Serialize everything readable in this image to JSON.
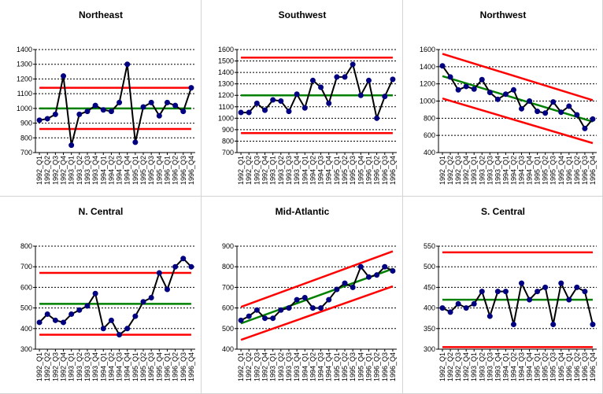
{
  "chart_data": [
    {
      "type": "line",
      "title": "Northeast",
      "categories": [
        "1992_Q1",
        "1992_Q2",
        "1992_Q3",
        "1992_Q4",
        "1993_Q1",
        "1993_Q2",
        "1993_Q3",
        "1993_Q4",
        "1994_Q1",
        "1994_Q2",
        "1994_Q3",
        "1994_Q4",
        "1995_Q1",
        "1995_Q2",
        "1995_Q3",
        "1995_Q4",
        "1996_Q1",
        "1996_Q2",
        "1996_Q3",
        "1996_Q4"
      ],
      "values": [
        920,
        930,
        960,
        1220,
        750,
        960,
        980,
        1020,
        990,
        980,
        1040,
        1300,
        770,
        1010,
        1040,
        950,
        1040,
        1020,
        980,
        1140
      ],
      "ylim": [
        700,
        1400
      ],
      "yticks": [
        700,
        800,
        900,
        1000,
        1100,
        1200,
        1300,
        1400
      ],
      "center_line": {
        "start": 1000,
        "end": 1000
      },
      "upper_limit": {
        "start": 1140,
        "end": 1140
      },
      "lower_limit": {
        "start": 860,
        "end": 860
      },
      "grid": "horizontal-dashed"
    },
    {
      "type": "line",
      "title": "Southwest",
      "categories": [
        "1992_Q1",
        "1992_Q2",
        "1992_Q3",
        "1992_Q4",
        "1993_Q1",
        "1993_Q2",
        "1993_Q3",
        "1993_Q4",
        "1994_Q1",
        "1994_Q2",
        "1994_Q3",
        "1994_Q4",
        "1995_Q1",
        "1995_Q2",
        "1995_Q3",
        "1995_Q4",
        "1996_Q1",
        "1996_Q2",
        "1996_Q3",
        "1996_Q4"
      ],
      "values": [
        1050,
        1050,
        1130,
        1070,
        1160,
        1150,
        1060,
        1210,
        1090,
        1330,
        1270,
        1130,
        1360,
        1360,
        1470,
        1200,
        1330,
        1000,
        1190,
        1340
      ],
      "ylim": [
        700,
        1600
      ],
      "yticks": [
        700,
        800,
        900,
        1000,
        1100,
        1200,
        1300,
        1400,
        1500,
        1600
      ],
      "center_line": {
        "start": 1200,
        "end": 1200
      },
      "upper_limit": {
        "start": 1530,
        "end": 1530
      },
      "lower_limit": {
        "start": 870,
        "end": 870
      },
      "grid": "horizontal-dashed"
    },
    {
      "type": "line",
      "title": "Northwest",
      "categories": [
        "1992_Q1",
        "1992_Q2",
        "1992_Q3",
        "1992_Q4",
        "1993_Q1",
        "1993_Q2",
        "1993_Q3",
        "1993_Q4",
        "1994_Q1",
        "1994_Q2",
        "1994_Q3",
        "1994_Q4",
        "1995_Q1",
        "1995_Q2",
        "1995_Q3",
        "1995_Q4",
        "1996_Q1",
        "1996_Q2",
        "1996_Q3",
        "1996_Q4"
      ],
      "values": [
        1410,
        1280,
        1130,
        1170,
        1140,
        1250,
        1100,
        1020,
        1080,
        1130,
        910,
        1000,
        880,
        860,
        990,
        870,
        940,
        840,
        680,
        790
      ],
      "ylim": [
        400,
        1600
      ],
      "yticks": [
        400,
        600,
        800,
        1000,
        1200,
        1400,
        1600
      ],
      "center_line": {
        "start": 1290,
        "end": 760
      },
      "upper_limit": {
        "start": 1550,
        "end": 1010
      },
      "lower_limit": {
        "start": 1030,
        "end": 510
      },
      "grid": "horizontal-dashed"
    },
    {
      "type": "line",
      "title": "N. Central",
      "categories": [
        "1992_Q1",
        "1992_Q2",
        "1992_Q3",
        "1992_Q4",
        "1993_Q1",
        "1993_Q2",
        "1993_Q3",
        "1993_Q4",
        "1994_Q1",
        "1994_Q2",
        "1994_Q3",
        "1994_Q4",
        "1995_Q1",
        "1995_Q2",
        "1995_Q3",
        "1995_Q4",
        "1996_Q1",
        "1996_Q2",
        "1996_Q3",
        "1996_Q4"
      ],
      "values": [
        430,
        470,
        440,
        430,
        470,
        490,
        510,
        570,
        400,
        440,
        370,
        400,
        460,
        530,
        550,
        670,
        590,
        700,
        740,
        700
      ],
      "ylim": [
        300,
        800
      ],
      "yticks": [
        300,
        400,
        500,
        600,
        700,
        800
      ],
      "center_line": {
        "start": 520,
        "end": 520
      },
      "upper_limit": {
        "start": 670,
        "end": 670
      },
      "lower_limit": {
        "start": 370,
        "end": 370
      },
      "grid": "horizontal-dashed"
    },
    {
      "type": "line",
      "title": "Mid-Atlantic",
      "categories": [
        "1992_Q1",
        "1992_Q2",
        "1992_Q3",
        "1992_Q4",
        "1993_Q1",
        "1993_Q2",
        "1993_Q3",
        "1993_Q4",
        "1994_Q1",
        "1994_Q2",
        "1994_Q3",
        "1994_Q4",
        "1995_Q1",
        "1995_Q2",
        "1995_Q3",
        "1995_Q4",
        "1996_Q1",
        "1996_Q2",
        "1996_Q3",
        "1996_Q4"
      ],
      "values": [
        540,
        560,
        590,
        550,
        550,
        590,
        600,
        640,
        650,
        600,
        600,
        640,
        690,
        720,
        700,
        800,
        750,
        760,
        800,
        780
      ],
      "ylim": [
        400,
        900
      ],
      "yticks": [
        400,
        500,
        600,
        700,
        800,
        900
      ],
      "center_line": {
        "start": 525,
        "end": 790
      },
      "upper_limit": {
        "start": 605,
        "end": 875
      },
      "lower_limit": {
        "start": 445,
        "end": 705
      },
      "grid": "horizontal-dashed"
    },
    {
      "type": "line",
      "title": "S. Central",
      "categories": [
        "1992_Q1",
        "1992_Q2",
        "1992_Q3",
        "1992_Q4",
        "1993_Q1",
        "1993_Q2",
        "1993_Q3",
        "1993_Q4",
        "1994_Q1",
        "1994_Q2",
        "1994_Q3",
        "1994_Q4",
        "1995_Q1",
        "1995_Q2",
        "1995_Q3",
        "1995_Q4",
        "1996_Q1",
        "1996_Q2",
        "1996_Q3",
        "1996_Q4"
      ],
      "values": [
        400,
        390,
        410,
        400,
        410,
        440,
        380,
        440,
        440,
        360,
        460,
        420,
        440,
        450,
        360,
        460,
        420,
        450,
        440,
        360
      ],
      "ylim": [
        300,
        550
      ],
      "yticks": [
        300,
        350,
        400,
        450,
        500,
        550
      ],
      "center_line": {
        "start": 420,
        "end": 420
      },
      "upper_limit": {
        "start": 535,
        "end": 535
      },
      "lower_limit": {
        "start": 305,
        "end": 305
      },
      "grid": "horizontal-dashed"
    }
  ],
  "colors": {
    "series": "#000080",
    "marker": "#000080",
    "center_line": "#008000",
    "limit_lines": "#ff0000",
    "grid": "#000000",
    "panel_border": "#d4d4d4"
  }
}
